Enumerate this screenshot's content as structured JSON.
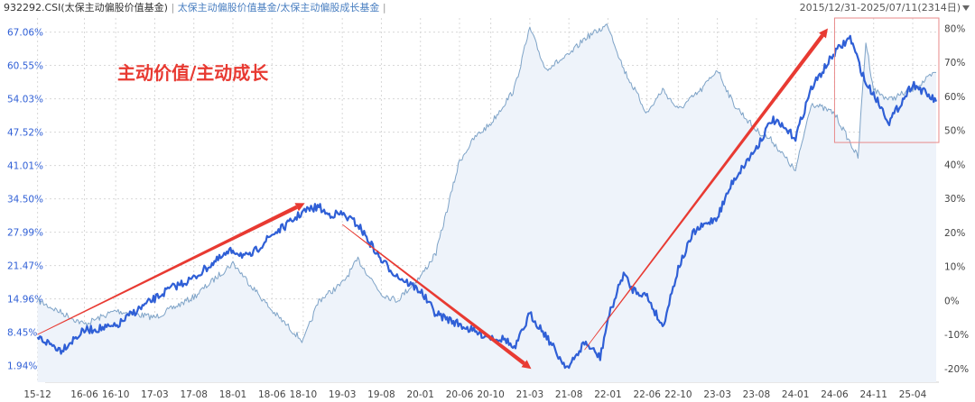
{
  "header": {
    "index_code": "932292.CSI(太保主动偏股价值基金)",
    "separator": " | ",
    "series_a": "太保主动偏股价值基金/太保主动偏股成长基金",
    "trailing": " | ",
    "date_range": "2015/12/31-2025/07/11(2314日)",
    "dropdown_icon": "triangle-down-icon"
  },
  "colors": {
    "thick_line": "#2f5fd6",
    "thin_line": "#7ea3c7",
    "area_fill": "#eef3fa",
    "arrow": "#e83a32",
    "annotation_text": "#e83a32",
    "box": "#e88a8a",
    "left_tick_text": "#2f5fd6",
    "right_tick_text": "#444444",
    "grid": "#d8d8d8"
  },
  "chart_data": {
    "type": "line",
    "title": "",
    "annotation": "主动价值/主动成长",
    "x_tick_labels": [
      "15-12",
      "16-06",
      "16-10",
      "17-03",
      "17-08",
      "18-01",
      "18-06",
      "18-10",
      "19-03",
      "19-08",
      "20-01",
      "20-06",
      "20-10",
      "21-03",
      "21-08",
      "22-01",
      "22-06",
      "22-10",
      "23-03",
      "23-08",
      "24-01",
      "24-06",
      "24-11",
      "25-04"
    ],
    "left_axis": {
      "unit": "%",
      "ticks": [
        "67.06%",
        "60.55%",
        "54.03%",
        "47.52%",
        "41.01%",
        "34.50%",
        "27.99%",
        "21.47%",
        "14.96%",
        "8.45%",
        "1.94%"
      ],
      "range": [
        -1.3,
        69.8
      ]
    },
    "right_axis": {
      "unit": "%",
      "ticks": [
        "80%",
        "70%",
        "60%",
        "50%",
        "40%",
        "30%",
        "20%",
        "10%",
        "0%",
        "-10%",
        "-20%"
      ],
      "range": [
        -24,
        83
      ]
    },
    "series": [
      {
        "name": "932292.CSI(太保主动偏股价值基金)",
        "axis": "left",
        "style": "thick",
        "points": [
          [
            "15-12",
            7.5
          ],
          [
            "16-03",
            5.0
          ],
          [
            "16-06",
            8.8
          ],
          [
            "16-08",
            9.2
          ],
          [
            "16-10",
            9.5
          ],
          [
            "16-12",
            12.0
          ],
          [
            "17-03",
            15.0
          ],
          [
            "17-05",
            17.0
          ],
          [
            "17-08",
            19.0
          ],
          [
            "17-10",
            21.5
          ],
          [
            "18-01",
            24.5
          ],
          [
            "18-03",
            23.0
          ],
          [
            "18-06",
            27.5
          ],
          [
            "18-08",
            29.5
          ],
          [
            "18-10",
            32.0
          ],
          [
            "18-12",
            33.0
          ],
          [
            "19-01",
            31.5
          ],
          [
            "19-03",
            31.5
          ],
          [
            "19-05",
            29.5
          ],
          [
            "19-08",
            22.5
          ],
          [
            "19-10",
            19.5
          ],
          [
            "20-01",
            16.5
          ],
          [
            "20-03",
            12.0
          ],
          [
            "20-06",
            10.0
          ],
          [
            "20-08",
            8.5
          ],
          [
            "20-10",
            7.5
          ],
          [
            "20-12",
            7.0
          ],
          [
            "21-01",
            5.0
          ],
          [
            "21-03",
            12.0
          ],
          [
            "21-05",
            8.0
          ],
          [
            "21-07",
            3.0
          ],
          [
            "21-08",
            1.5
          ],
          [
            "21-10",
            6.5
          ],
          [
            "21-12",
            3.5
          ],
          [
            "22-01",
            11.0
          ],
          [
            "22-03",
            20.0
          ],
          [
            "22-04",
            17.0
          ],
          [
            "22-06",
            15.5
          ],
          [
            "22-08",
            9.5
          ],
          [
            "22-10",
            21.0
          ],
          [
            "22-12",
            28.0
          ],
          [
            "23-03",
            31.0
          ],
          [
            "23-05",
            38.0
          ],
          [
            "23-08",
            44.5
          ],
          [
            "23-10",
            50.0
          ],
          [
            "24-01",
            46.5
          ],
          [
            "24-03",
            56.0
          ],
          [
            "24-06",
            63.0
          ],
          [
            "24-08",
            66.0
          ],
          [
            "24-10",
            57.0
          ],
          [
            "24-11",
            55.0
          ],
          [
            "25-01",
            49.5
          ],
          [
            "25-04",
            57.0
          ],
          [
            "25-07",
            53.5
          ]
        ]
      },
      {
        "name": "太保主动偏股价值基金/太保主动偏股成长基金",
        "axis": "right",
        "style": "thin",
        "points": [
          [
            "15-12",
            0
          ],
          [
            "16-06",
            -7
          ],
          [
            "16-10",
            -3
          ],
          [
            "17-03",
            -5
          ],
          [
            "17-08",
            1
          ],
          [
            "18-01",
            11
          ],
          [
            "18-06",
            -3
          ],
          [
            "18-10",
            -12
          ],
          [
            "18-12",
            0
          ],
          [
            "19-03",
            5
          ],
          [
            "19-05",
            12
          ],
          [
            "19-08",
            2
          ],
          [
            "19-10",
            0
          ],
          [
            "20-01",
            7
          ],
          [
            "20-03",
            14
          ],
          [
            "20-06",
            41
          ],
          [
            "20-08",
            48
          ],
          [
            "20-10",
            52
          ],
          [
            "21-01",
            62
          ],
          [
            "21-03",
            80
          ],
          [
            "21-05",
            68
          ],
          [
            "21-08",
            72
          ],
          [
            "21-10",
            77
          ],
          [
            "22-01",
            81
          ],
          [
            "22-03",
            68
          ],
          [
            "22-06",
            55
          ],
          [
            "22-08",
            62
          ],
          [
            "22-10",
            56
          ],
          [
            "23-01",
            62
          ],
          [
            "23-03",
            68
          ],
          [
            "23-05",
            58
          ],
          [
            "23-08",
            50
          ],
          [
            "23-10",
            47
          ],
          [
            "24-01",
            38
          ],
          [
            "24-03",
            58
          ],
          [
            "24-06",
            55
          ],
          [
            "24-09",
            42
          ],
          [
            "24-10",
            76
          ],
          [
            "24-11",
            62
          ],
          [
            "25-01",
            59
          ],
          [
            "25-04",
            62
          ],
          [
            "25-07",
            67
          ]
        ]
      }
    ],
    "arrows": [
      {
        "from": [
          "15-12",
          8.0
        ],
        "to": [
          "18-10",
          33.5
        ]
      },
      {
        "from": [
          "19-03",
          29.5
        ],
        "to": [
          "21-03",
          1.5
        ]
      },
      {
        "from": [
          "21-10",
          5.0
        ],
        "to": [
          "24-05",
          67.5
        ]
      }
    ],
    "highlight_box": {
      "x_from": "24-06",
      "x_to": "25-07",
      "y_from": 45.5,
      "y_to": 69.8
    },
    "grid": true,
    "legend": "none"
  }
}
